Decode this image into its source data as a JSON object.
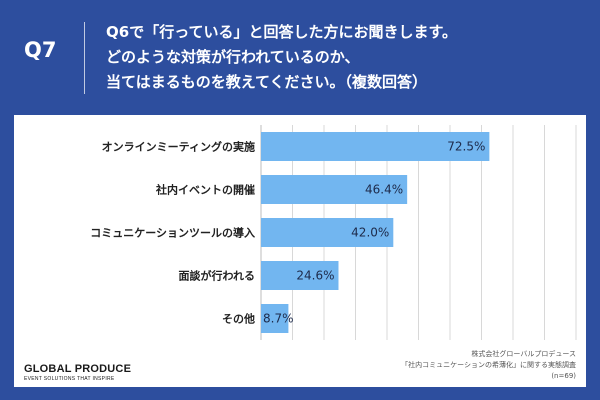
{
  "header": {
    "qnum": "Q7",
    "question_lines": [
      "Q6で「行っている」と回答した方にお聞きします。",
      "どのような対策が行われているのか、",
      "当てはまるものを教えてください。（複数回答）"
    ]
  },
  "chart_data": {
    "type": "bar",
    "orientation": "horizontal",
    "categories": [
      "オンラインミーティングの実施",
      "社内イベントの開催",
      "コミュニケーションツールの導入",
      "面談が行われる",
      "その他"
    ],
    "values": [
      72.5,
      46.4,
      42.0,
      24.6,
      8.7
    ],
    "value_labels": [
      "72.5%",
      "46.4%",
      "42.0%",
      "24.6%",
      "8.7%"
    ],
    "xlim": [
      0,
      100
    ],
    "grid": true,
    "bar_color": "#72b6f0",
    "grid_color": "#d8d8d8"
  },
  "footer": {
    "logo_main": "GLOBAL PRODUCE",
    "logo_sub": "EVENT SOLUTIONS THAT INSPIRE",
    "source_lines": [
      "株式会社グローバルプロデュース",
      "「社内コミュニケーションの希薄化」に関する実態調査",
      "(n=69)"
    ]
  },
  "colors": {
    "background": "#2d4e9e",
    "panel": "#ffffff"
  }
}
